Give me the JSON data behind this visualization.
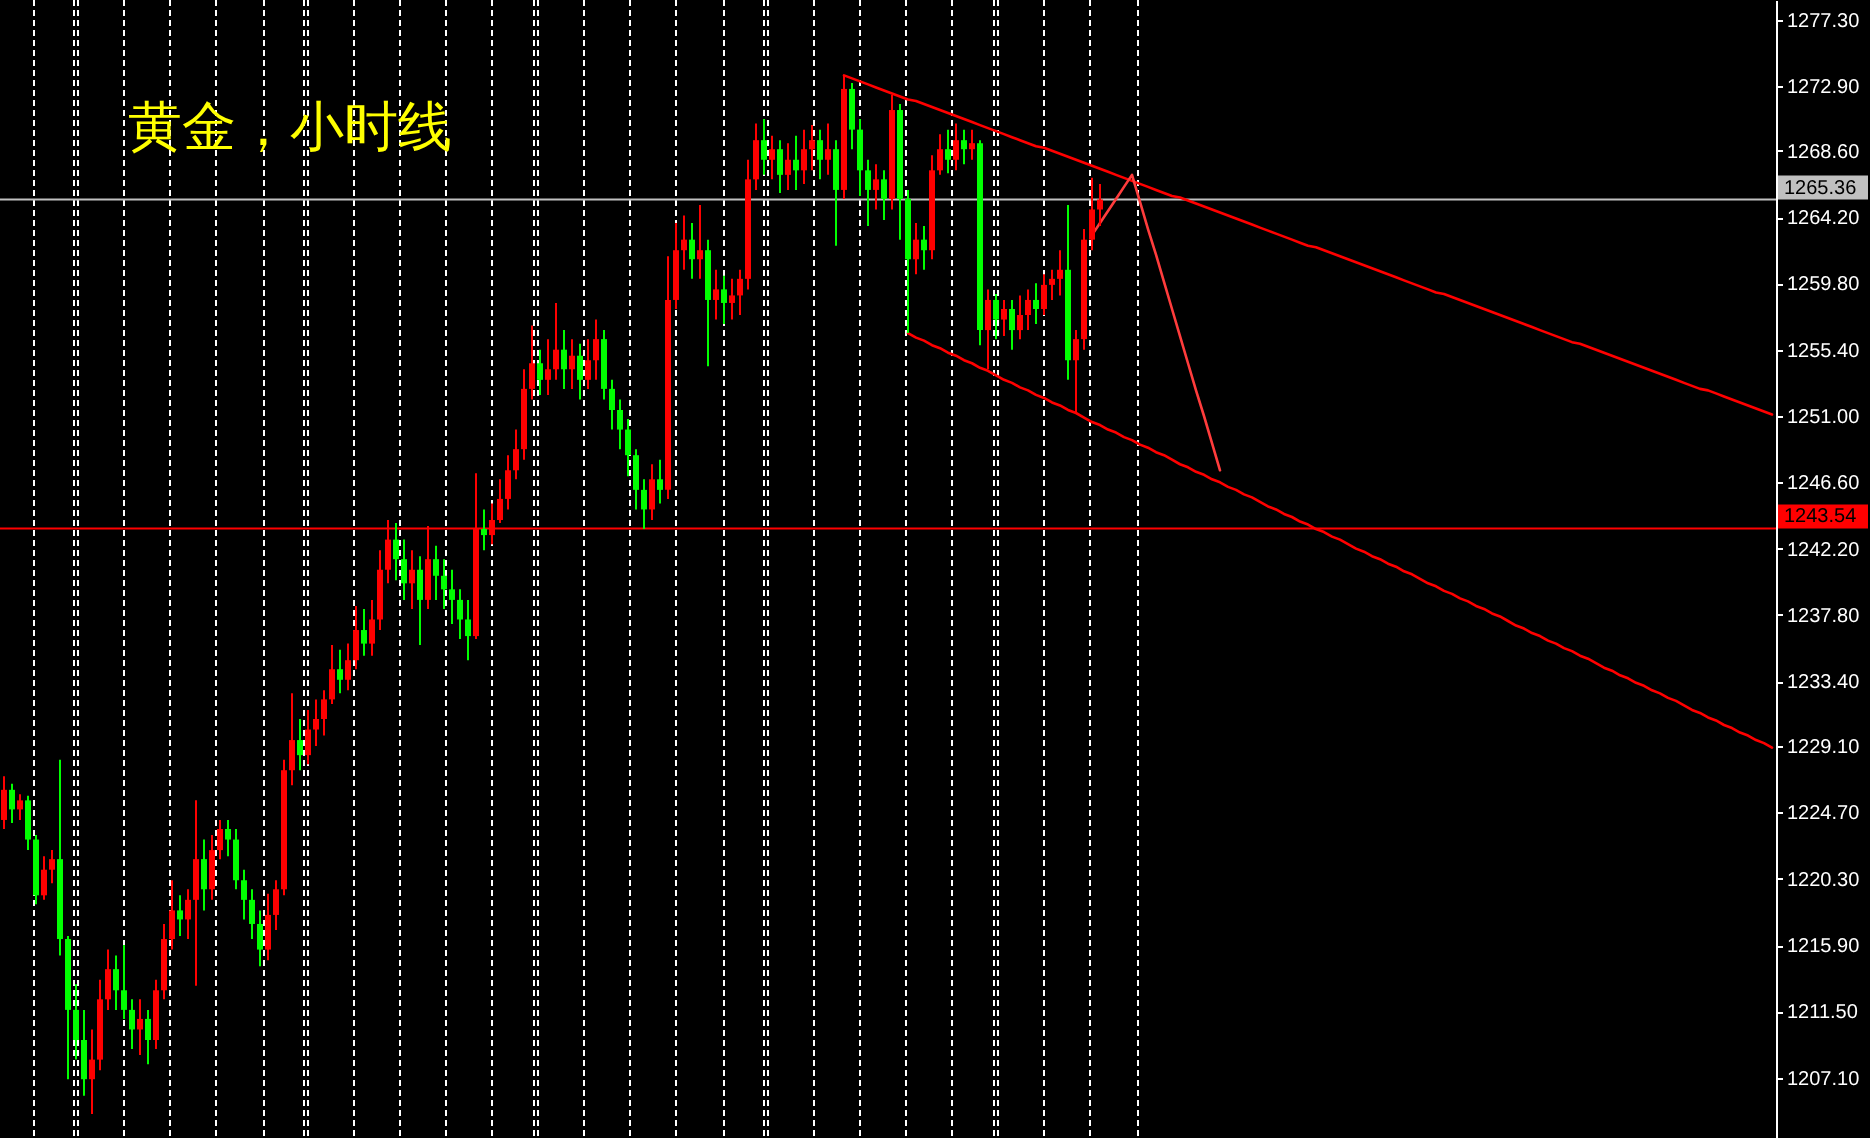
{
  "chart_data": {
    "type": "candlestick",
    "title": "黄金，小时线",
    "categories": [
      null,
      null,
      null,
      null,
      null,
      null,
      null,
      null,
      null,
      null,
      null,
      null,
      null,
      null,
      null,
      null,
      null,
      null,
      null,
      null,
      null,
      null,
      null,
      null,
      null,
      null,
      null,
      null,
      null,
      null,
      null,
      null,
      null,
      null,
      null,
      null,
      null,
      null,
      null,
      null,
      null,
      null,
      null,
      null,
      null,
      null,
      null,
      null,
      null,
      null,
      null,
      null,
      null,
      null,
      null,
      null,
      null,
      null,
      null,
      null,
      null,
      null,
      null,
      null,
      null,
      null,
      null,
      null,
      null,
      null,
      null,
      null,
      null,
      null,
      null,
      null,
      null,
      null,
      null,
      null,
      null,
      null,
      null,
      null,
      null,
      null,
      null,
      null,
      null,
      null,
      null,
      null,
      null,
      null,
      null,
      null,
      null,
      null,
      null,
      null,
      null,
      null,
      null,
      null,
      null,
      null,
      null,
      null,
      null,
      null,
      null,
      null,
      null,
      null,
      null,
      null,
      null,
      null,
      null,
      null,
      null,
      null,
      null,
      null,
      null,
      null,
      null,
      null,
      null,
      null,
      null,
      null,
      null,
      null,
      null,
      null,
      null,
      null,
      null,
      null,
      null,
      null,
      null,
      null,
      null,
      null,
      null,
      null,
      null,
      null,
      null,
      null,
      null,
      null,
      null,
      null,
      null,
      null,
      null,
      null,
      null,
      null,
      null,
      null,
      null,
      null,
      null,
      null,
      null,
      null,
      null,
      null,
      null,
      null,
      null,
      null,
      null,
      null,
      null,
      null,
      null,
      null,
      null,
      null,
      null,
      null,
      null,
      null,
      null,
      null,
      null,
      null,
      null,
      null,
      null,
      null,
      null,
      null,
      null,
      null,
      null,
      null,
      null,
      null,
      null,
      null,
      null,
      null,
      null,
      null,
      null,
      null,
      null,
      null,
      null,
      null,
      null,
      null,
      null,
      null,
      null,
      null
    ],
    "ohlc": [
      [
        1224.2,
        1227.1,
        1223.6,
        1226.2
      ],
      [
        1226.2,
        1226.6,
        1224.0,
        1224.9
      ],
      [
        1224.9,
        1225.9,
        1224.2,
        1225.5
      ],
      [
        1225.5,
        1225.8,
        1222.2,
        1222.9
      ],
      [
        1222.9,
        1223.2,
        1218.6,
        1219.2
      ],
      [
        1219.2,
        1221.8,
        1218.9,
        1220.9
      ],
      [
        1220.9,
        1222.2,
        1220.0,
        1221.6
      ],
      [
        1221.6,
        1228.2,
        1215.2,
        1216.3
      ],
      [
        1216.3,
        1216.5,
        1207.0,
        1211.6
      ],
      [
        1211.6,
        1213.3,
        1208.3,
        1209.6
      ],
      [
        1209.6,
        1211.6,
        1205.9,
        1207.0
      ],
      [
        1207.0,
        1210.3,
        1204.7,
        1208.3
      ],
      [
        1208.3,
        1213.6,
        1207.6,
        1212.3
      ],
      [
        1212.3,
        1215.6,
        1211.6,
        1214.3
      ],
      [
        1214.3,
        1215.2,
        1211.6,
        1212.9
      ],
      [
        1212.9,
        1215.9,
        1211.0,
        1211.6
      ],
      [
        1211.6,
        1212.3,
        1209.0,
        1210.3
      ],
      [
        1210.3,
        1212.3,
        1208.6,
        1211.0
      ],
      [
        1211.0,
        1211.6,
        1208.0,
        1209.6
      ],
      [
        1209.6,
        1213.6,
        1209.0,
        1212.9
      ],
      [
        1212.9,
        1217.3,
        1212.3,
        1216.3
      ],
      [
        1216.3,
        1220.2,
        1215.6,
        1218.2
      ],
      [
        1218.2,
        1219.2,
        1216.5,
        1217.6
      ],
      [
        1217.6,
        1219.6,
        1216.3,
        1218.9
      ],
      [
        1218.9,
        1225.5,
        1213.2,
        1221.6
      ],
      [
        1221.6,
        1222.9,
        1218.2,
        1219.6
      ],
      [
        1219.6,
        1223.2,
        1218.9,
        1222.2
      ],
      [
        1222.2,
        1224.2,
        1221.6,
        1223.6
      ],
      [
        1223.6,
        1224.2,
        1221.8,
        1222.9
      ],
      [
        1222.9,
        1223.6,
        1219.6,
        1220.2
      ],
      [
        1220.2,
        1220.9,
        1217.6,
        1218.9
      ],
      [
        1218.9,
        1219.6,
        1216.3,
        1217.3
      ],
      [
        1217.3,
        1218.2,
        1214.5,
        1215.6
      ],
      [
        1215.6,
        1219.3,
        1214.9,
        1217.9
      ],
      [
        1217.9,
        1220.2,
        1216.9,
        1219.6
      ],
      [
        1219.6,
        1228.2,
        1219.2,
        1227.5
      ],
      [
        1227.5,
        1232.6,
        1226.5,
        1229.5
      ],
      [
        1229.5,
        1230.9,
        1227.5,
        1228.5
      ],
      [
        1228.5,
        1231.5,
        1227.9,
        1230.2
      ],
      [
        1230.2,
        1232.2,
        1229.1,
        1230.9
      ],
      [
        1230.9,
        1232.8,
        1229.8,
        1232.2
      ],
      [
        1232.2,
        1235.8,
        1231.9,
        1234.2
      ],
      [
        1234.2,
        1235.5,
        1232.6,
        1233.5
      ],
      [
        1233.5,
        1235.9,
        1232.8,
        1234.8
      ],
      [
        1234.8,
        1238.4,
        1234.2,
        1236.8
      ],
      [
        1236.8,
        1238.2,
        1235.1,
        1235.9
      ],
      [
        1235.9,
        1238.8,
        1235.1,
        1237.5
      ],
      [
        1237.5,
        1242.1,
        1236.8,
        1240.8
      ],
      [
        1240.8,
        1244.1,
        1239.9,
        1242.8
      ],
      [
        1242.8,
        1243.9,
        1240.1,
        1241.5
      ],
      [
        1241.5,
        1242.8,
        1238.8,
        1239.9
      ],
      [
        1239.9,
        1242.1,
        1238.2,
        1240.8
      ],
      [
        1240.8,
        1241.7,
        1235.8,
        1238.8
      ],
      [
        1238.8,
        1243.7,
        1238.2,
        1241.5
      ],
      [
        1241.5,
        1242.4,
        1238.8,
        1240.4
      ],
      [
        1240.4,
        1241.5,
        1238.2,
        1239.5
      ],
      [
        1239.5,
        1240.8,
        1237.2,
        1238.8
      ],
      [
        1238.8,
        1239.5,
        1236.2,
        1237.5
      ],
      [
        1237.5,
        1238.8,
        1234.8,
        1236.4
      ],
      [
        1236.4,
        1247.2,
        1236.2,
        1243.5
      ],
      [
        1243.5,
        1244.8,
        1242.1,
        1243.1
      ],
      [
        1243.1,
        1245.2,
        1242.5,
        1244.1
      ],
      [
        1244.1,
        1246.8,
        1243.9,
        1245.5
      ],
      [
        1245.5,
        1248.4,
        1244.8,
        1247.4
      ],
      [
        1247.4,
        1250.1,
        1246.8,
        1248.8
      ],
      [
        1248.8,
        1254.1,
        1248.1,
        1252.8
      ],
      [
        1252.8,
        1257.0,
        1252.1,
        1254.5
      ],
      [
        1254.5,
        1255.4,
        1252.4,
        1253.4
      ],
      [
        1253.4,
        1256.1,
        1252.4,
        1254.1
      ],
      [
        1254.1,
        1258.5,
        1253.4,
        1255.4
      ],
      [
        1255.4,
        1256.7,
        1252.8,
        1254.1
      ],
      [
        1254.1,
        1256.1,
        1252.8,
        1255.0
      ],
      [
        1255.0,
        1255.8,
        1252.1,
        1253.4
      ],
      [
        1253.4,
        1256.1,
        1252.8,
        1254.7
      ],
      [
        1254.7,
        1257.4,
        1253.4,
        1256.1
      ],
      [
        1256.1,
        1256.7,
        1252.1,
        1252.8
      ],
      [
        1252.8,
        1253.4,
        1250.1,
        1251.4
      ],
      [
        1251.4,
        1252.1,
        1248.8,
        1250.1
      ],
      [
        1250.1,
        1250.8,
        1247.0,
        1248.4
      ],
      [
        1248.4,
        1248.8,
        1244.8,
        1246.1
      ],
      [
        1246.1,
        1246.8,
        1243.5,
        1244.8
      ],
      [
        1244.8,
        1247.8,
        1244.1,
        1246.8
      ],
      [
        1246.8,
        1248.1,
        1245.2,
        1246.1
      ],
      [
        1246.1,
        1261.6,
        1245.5,
        1258.7
      ],
      [
        1258.7,
        1263.8,
        1258.1,
        1262.0
      ],
      [
        1262.0,
        1264.3,
        1260.7,
        1262.7
      ],
      [
        1262.7,
        1263.8,
        1260.1,
        1261.4
      ],
      [
        1261.4,
        1265.0,
        1260.1,
        1262.0
      ],
      [
        1262.0,
        1262.7,
        1254.3,
        1258.7
      ],
      [
        1258.7,
        1260.7,
        1257.4,
        1259.4
      ],
      [
        1259.4,
        1260.3,
        1257.1,
        1258.5
      ],
      [
        1258.5,
        1260.1,
        1257.4,
        1259.0
      ],
      [
        1259.0,
        1260.7,
        1257.7,
        1260.1
      ],
      [
        1260.1,
        1268.0,
        1259.4,
        1266.7
      ],
      [
        1266.7,
        1270.4,
        1266.0,
        1269.3
      ],
      [
        1269.3,
        1270.7,
        1267.0,
        1268.0
      ],
      [
        1268.0,
        1269.6,
        1266.7,
        1268.7
      ],
      [
        1268.7,
        1269.3,
        1265.8,
        1267.0
      ],
      [
        1267.0,
        1269.1,
        1266.0,
        1268.0
      ],
      [
        1268.0,
        1269.6,
        1266.0,
        1267.3
      ],
      [
        1267.3,
        1270.0,
        1266.4,
        1268.7
      ],
      [
        1268.7,
        1270.3,
        1267.3,
        1269.3
      ],
      [
        1269.3,
        1270.0,
        1266.7,
        1268.0
      ],
      [
        1268.0,
        1270.4,
        1267.0,
        1268.7
      ],
      [
        1268.7,
        1269.3,
        1262.3,
        1266.0
      ],
      [
        1266.0,
        1273.6,
        1265.4,
        1272.7
      ],
      [
        1272.7,
        1273.1,
        1268.7,
        1270.0
      ],
      [
        1270.0,
        1270.7,
        1265.6,
        1267.3
      ],
      [
        1267.3,
        1268.0,
        1263.6,
        1266.0
      ],
      [
        1266.0,
        1267.7,
        1264.7,
        1266.7
      ],
      [
        1266.7,
        1267.3,
        1264.0,
        1265.4
      ],
      [
        1265.4,
        1272.3,
        1264.7,
        1271.3
      ],
      [
        1271.3,
        1271.7,
        1262.7,
        1265.4
      ],
      [
        1265.4,
        1266.0,
        1256.5,
        1261.4
      ],
      [
        1261.4,
        1263.8,
        1260.4,
        1262.7
      ],
      [
        1262.7,
        1263.6,
        1260.7,
        1262.0
      ],
      [
        1262.0,
        1268.3,
        1261.4,
        1267.3
      ],
      [
        1267.3,
        1269.7,
        1267.0,
        1268.7
      ],
      [
        1268.7,
        1270.0,
        1267.1,
        1268.0
      ],
      [
        1268.0,
        1270.4,
        1267.3,
        1269.3
      ],
      [
        1269.3,
        1270.0,
        1267.7,
        1268.7
      ],
      [
        1268.7,
        1270.0,
        1268.0,
        1269.1
      ],
      [
        1269.1,
        1269.3,
        1255.7,
        1256.7
      ],
      [
        1256.7,
        1259.4,
        1254.1,
        1258.7
      ],
      [
        1258.7,
        1259.1,
        1256.1,
        1257.4
      ],
      [
        1257.4,
        1258.7,
        1256.3,
        1258.1
      ],
      [
        1258.1,
        1258.7,
        1255.4,
        1256.7
      ],
      [
        1256.7,
        1259.0,
        1256.1,
        1257.7
      ],
      [
        1257.7,
        1259.4,
        1256.7,
        1258.7
      ],
      [
        1258.7,
        1259.8,
        1257.1,
        1258.1
      ],
      [
        1258.1,
        1260.4,
        1257.7,
        1259.7
      ],
      [
        1259.7,
        1260.7,
        1258.7,
        1260.1
      ],
      [
        1260.1,
        1262.0,
        1259.0,
        1260.7
      ],
      [
        1260.7,
        1265.0,
        1253.4,
        1254.7
      ],
      [
        1254.7,
        1256.7,
        1251.2,
        1256.1
      ],
      [
        1256.1,
        1263.4,
        1255.4,
        1262.7
      ],
      [
        1262.7,
        1266.8,
        1262.0,
        1264.7
      ],
      [
        1264.7,
        1266.4,
        1263.6,
        1265.36
      ],
      null,
      null,
      null,
      null,
      null,
      null,
      null,
      null,
      null,
      null,
      null,
      null,
      null,
      null,
      null,
      null,
      null,
      null,
      null,
      null,
      null,
      null,
      null,
      null,
      null,
      null,
      null,
      null,
      null,
      null,
      null,
      null,
      null,
      null,
      null,
      null,
      null,
      null,
      null,
      null,
      null,
      null,
      null,
      null,
      null,
      null,
      null,
      null,
      null,
      null,
      null,
      null,
      null,
      null,
      null,
      null,
      null,
      null,
      null,
      null,
      null,
      null,
      null,
      null,
      null,
      null,
      null,
      null,
      null,
      null,
      null,
      null,
      null,
      null,
      null,
      null,
      null,
      null,
      null,
      null,
      null,
      null,
      null,
      null
    ],
    "colors": [
      "#ff0000",
      "#00ff00",
      "#ff0000",
      "#00ff00",
      "#00ff00",
      "#ff0000",
      "#ff0000",
      "#00ff00",
      "#00ff00",
      "#00ff00",
      "#00ff00",
      "#ff0000",
      "#ff0000",
      "#ff0000",
      "#00ff00",
      "#00ff00",
      "#00ff00",
      "#ff0000",
      "#00ff00",
      "#ff0000",
      "#ff0000",
      "#ff0000",
      "#00ff00",
      "#ff0000",
      "#ff0000",
      "#00ff00",
      "#ff0000",
      "#ff0000",
      "#00ff00",
      "#00ff00",
      "#00ff00",
      "#00ff00",
      "#00ff00",
      "#ff0000",
      "#ff0000",
      "#ff0000",
      "#ff0000",
      "#00ff00",
      "#ff0000",
      "#ff0000",
      "#ff0000",
      "#ff0000",
      "#00ff00",
      "#ff0000",
      "#ff0000",
      "#00ff00",
      "#ff0000",
      "#ff0000",
      "#ff0000",
      "#00ff00",
      "#00ff00",
      "#ff0000",
      "#00ff00",
      "#ff0000",
      "#00ff00",
      "#00ff00",
      "#00ff00",
      "#00ff00",
      "#00ff00",
      "#ff0000",
      "#00ff00",
      "#ff0000",
      "#ff0000",
      "#ff0000",
      "#ff0000",
      "#ff0000",
      "#ff0000",
      "#00ff00",
      "#ff0000",
      "#ff0000",
      "#00ff00",
      "#ff0000",
      "#00ff00",
      "#ff0000",
      "#ff0000",
      "#00ff00",
      "#00ff00",
      "#00ff00",
      "#00ff00",
      "#00ff00",
      "#00ff00",
      "#ff0000",
      "#00ff00",
      "#ff0000",
      "#ff0000",
      "#ff0000",
      "#00ff00",
      "#ff0000",
      "#00ff00",
      "#ff0000",
      "#00ff00",
      "#ff0000",
      "#ff0000",
      "#ff0000",
      "#ff0000",
      "#00ff00",
      "#ff0000",
      "#00ff00",
      "#ff0000",
      "#00ff00",
      "#ff0000",
      "#ff0000",
      "#00ff00",
      "#ff0000",
      "#00ff00",
      "#ff0000",
      "#00ff00",
      "#00ff00",
      "#00ff00",
      "#ff0000",
      "#00ff00",
      "#ff0000",
      "#00ff00",
      "#00ff00",
      "#ff0000",
      "#00ff00",
      "#ff0000",
      "#ff0000",
      "#00ff00",
      "#ff0000",
      "#00ff00",
      "#ff0000",
      "#00ff00",
      "#ff0000",
      "#00ff00",
      "#ff0000",
      "#00ff00",
      "#ff0000",
      "#ff0000",
      "#00ff00",
      "#ff0000",
      "#ff0000",
      "#ff0000",
      "#00ff00",
      "#ff0000",
      "#ff0000",
      "#ff0000",
      "#ff0000",
      null,
      null,
      null,
      null,
      null,
      null,
      null,
      null,
      null,
      null,
      null,
      null,
      null,
      null,
      null,
      null,
      null,
      null,
      null,
      null,
      null,
      null,
      null,
      null,
      null,
      null,
      null,
      null,
      null,
      null,
      null,
      null,
      null,
      null,
      null,
      null,
      null,
      null,
      null,
      null,
      null,
      null,
      null,
      null,
      null,
      null,
      null,
      null,
      null,
      null,
      null,
      null,
      null,
      null,
      null,
      null,
      null,
      null,
      null,
      null,
      null,
      null,
      null,
      null,
      null,
      null,
      null,
      null,
      null,
      null,
      null,
      null,
      null,
      null,
      null,
      null,
      null,
      null,
      null,
      null,
      null,
      null,
      null,
      null
    ],
    "series": [
      {
        "type": "line",
        "color": "#ff0000",
        "values": [
          null,
          null,
          null,
          null,
          null,
          null,
          null,
          null,
          null,
          null,
          null,
          null,
          null,
          null,
          null,
          null,
          null,
          null,
          null,
          null,
          null,
          null,
          null,
          null,
          null,
          null,
          null,
          null,
          null,
          null,
          null,
          null,
          null,
          null,
          null,
          null,
          null,
          null,
          null,
          null,
          null,
          null,
          null,
          null,
          null,
          null,
          null,
          null,
          null,
          null,
          null,
          null,
          null,
          null,
          null,
          null,
          null,
          null,
          null,
          null,
          null,
          null,
          null,
          null,
          null,
          null,
          null,
          null,
          null,
          null,
          null,
          null,
          null,
          null,
          null,
          null,
          null,
          null,
          null,
          null,
          null,
          null,
          null,
          null,
          null,
          null,
          null,
          null,
          null,
          null,
          null,
          null,
          null,
          null,
          null,
          null,
          null,
          null,
          null,
          null,
          null,
          null,
          null,
          null,
          null,
          1273.6,
          1273.4,
          1273.2,
          1273.0,
          1272.8,
          1272.6,
          1272.4,
          1272.2,
          1272.0,
          1271.9,
          1271.7,
          1271.5,
          1271.3,
          1271.1,
          1270.9,
          1270.7,
          1270.5,
          1270.3,
          1270.1,
          1269.9,
          1269.7,
          1269.5,
          1269.3,
          1269.1,
          1268.9,
          1268.8,
          1268.6,
          1268.4,
          1268.2,
          1268.0,
          1267.8,
          1267.6,
          1267.4,
          1267.2,
          1267.0,
          1266.8,
          1266.6,
          1266.4,
          1266.2,
          1266.0,
          1265.8,
          1265.6,
          1265.5,
          1265.3,
          1265.1,
          1264.9,
          1264.7,
          1264.5,
          1264.3,
          1264.1,
          1263.9,
          1263.7,
          1263.5,
          1263.3,
          1263.1,
          1262.9,
          1262.7,
          1262.5,
          1262.3,
          1262.2,
          1262.0,
          1261.8,
          1261.6,
          1261.4,
          1261.2,
          1261.0,
          1260.8,
          1260.6,
          1260.4,
          1260.2,
          1260.0,
          1259.8,
          1259.6,
          1259.4,
          1259.2,
          1259.1,
          1258.9,
          1258.7,
          1258.5,
          1258.3,
          1258.1,
          1257.9,
          1257.7,
          1257.5,
          1257.3,
          1257.1,
          1256.9,
          1256.7,
          1256.5,
          1256.3,
          1256.1,
          1255.9,
          1255.8,
          1255.6,
          1255.4,
          1255.2,
          1255.0,
          1254.8,
          1254.6,
          1254.4,
          1254.2,
          1254.0,
          1253.8,
          1253.6,
          1253.4,
          1253.2,
          1253.0,
          1252.8,
          1252.7,
          1252.5,
          1252.3,
          1252.1,
          1251.9,
          1251.7,
          1251.5,
          1251.3,
          1251.1
        ]
      },
      {
        "type": "line",
        "color": "#ff0000",
        "values": [
          null,
          null,
          null,
          null,
          null,
          null,
          null,
          null,
          null,
          null,
          null,
          null,
          null,
          null,
          null,
          null,
          null,
          null,
          null,
          null,
          null,
          null,
          null,
          null,
          null,
          null,
          null,
          null,
          null,
          null,
          null,
          null,
          null,
          null,
          null,
          null,
          null,
          null,
          null,
          null,
          null,
          null,
          null,
          null,
          null,
          null,
          null,
          null,
          null,
          null,
          null,
          null,
          null,
          null,
          null,
          null,
          null,
          null,
          null,
          null,
          null,
          null,
          null,
          null,
          null,
          null,
          null,
          null,
          null,
          null,
          null,
          null,
          null,
          null,
          null,
          null,
          null,
          null,
          null,
          null,
          null,
          null,
          null,
          null,
          null,
          null,
          null,
          null,
          null,
          null,
          null,
          null,
          null,
          null,
          null,
          null,
          null,
          null,
          null,
          null,
          null,
          null,
          null,
          null,
          null,
          null,
          null,
          null,
          null,
          null,
          null,
          null,
          null,
          1256.5,
          1256.2,
          1256.0,
          1255.7,
          1255.5,
          1255.2,
          1255.0,
          1254.7,
          1254.5,
          1254.2,
          1254.0,
          1253.7,
          1253.4,
          1253.2,
          1252.9,
          1252.7,
          1252.4,
          1252.2,
          1251.9,
          1251.7,
          1251.4,
          1251.2,
          1250.9,
          1250.6,
          1250.4,
          1250.1,
          1249.9,
          1249.6,
          1249.4,
          1249.1,
          1248.9,
          1248.6,
          1248.4,
          1248.1,
          1247.8,
          1247.6,
          1247.3,
          1247.1,
          1246.8,
          1246.6,
          1246.3,
          1246.1,
          1245.8,
          1245.6,
          1245.3,
          1245.0,
          1244.8,
          1244.5,
          1244.3,
          1244.0,
          1243.8,
          1243.5,
          1243.3,
          1243.0,
          1242.8,
          1242.5,
          1242.2,
          1242.0,
          1241.7,
          1241.5,
          1241.2,
          1241.0,
          1240.7,
          1240.5,
          1240.2,
          1239.9,
          1239.7,
          1239.4,
          1239.2,
          1238.9,
          1238.7,
          1238.4,
          1238.2,
          1237.9,
          1237.7,
          1237.4,
          1237.1,
          1236.9,
          1236.6,
          1236.4,
          1236.1,
          1235.9,
          1235.6,
          1235.4,
          1235.1,
          1234.9,
          1234.6,
          1234.3,
          1234.1,
          1233.8,
          1233.6,
          1233.3,
          1233.1,
          1232.8,
          1232.6,
          1232.3,
          1232.1,
          1231.8,
          1231.5,
          1231.3,
          1231.0,
          1230.8,
          1230.5,
          1230.3,
          1230.0,
          1229.8,
          1229.5,
          1229.3,
          1229.0
        ]
      },
      {
        "type": "line",
        "color": "#ff3c3c",
        "values": [
          null,
          null,
          null,
          null,
          null,
          null,
          null,
          null,
          null,
          null,
          null,
          null,
          null,
          null,
          null,
          null,
          null,
          null,
          null,
          null,
          null,
          null,
          null,
          null,
          null,
          null,
          null,
          null,
          null,
          null,
          null,
          null,
          null,
          null,
          null,
          null,
          null,
          null,
          null,
          null,
          null,
          null,
          null,
          null,
          null,
          null,
          null,
          null,
          null,
          null,
          null,
          null,
          null,
          null,
          null,
          null,
          null,
          null,
          null,
          null,
          null,
          null,
          null,
          null,
          null,
          null,
          null,
          null,
          null,
          null,
          null,
          null,
          null,
          null,
          null,
          null,
          null,
          null,
          null,
          null,
          null,
          null,
          null,
          null,
          null,
          null,
          null,
          null,
          null,
          null,
          null,
          null,
          null,
          null,
          null,
          null,
          null,
          null,
          null,
          null,
          null,
          null,
          null,
          null,
          null,
          null,
          null,
          null,
          null,
          null,
          null,
          null,
          null,
          null,
          null,
          null,
          null,
          null,
          null,
          null,
          null,
          null,
          null,
          null,
          null,
          null,
          null,
          null,
          null,
          null,
          null,
          null,
          null,
          null,
          null,
          null,
          1263.0,
          1263.8,
          1264.6,
          1265.4,
          1266.2,
          1267.0,
          1265.2,
          1263.4,
          1261.7,
          1259.9,
          1258.1,
          1256.3,
          1254.5,
          1252.7,
          1251.0,
          1249.2,
          1247.4,
          null,
          null,
          null,
          null,
          null,
          null,
          null,
          null,
          null,
          null,
          null,
          null,
          null,
          null,
          null,
          null,
          null,
          null,
          null,
          null,
          null,
          null,
          null,
          null,
          null,
          null,
          null,
          null,
          null,
          null,
          null,
          null,
          null,
          null,
          null,
          null,
          null,
          null,
          null,
          null,
          null,
          null,
          null,
          null,
          null,
          null,
          null,
          null,
          null,
          null,
          null,
          null,
          null,
          null,
          null,
          null,
          null,
          null,
          null,
          null,
          null,
          null,
          null,
          null,
          null,
          null,
          null,
          null,
          null
        ]
      }
    ],
    "ylim": [
      1203.1,
      1278.6
    ],
    "yticks": [
      {
        "value": 1207.1,
        "label": "1207.10"
      },
      {
        "value": 1211.5,
        "label": "1211.50"
      },
      {
        "value": 1215.9,
        "label": "1215.90"
      },
      {
        "value": 1220.3,
        "label": "1220.30"
      },
      {
        "value": 1224.7,
        "label": "1224.70"
      },
      {
        "value": 1229.1,
        "label": "1229.10"
      },
      {
        "value": 1233.4,
        "label": "1233.40"
      },
      {
        "value": 1237.8,
        "label": "1237.80"
      },
      {
        "value": 1242.2,
        "label": "1242.20"
      },
      {
        "value": 1246.6,
        "label": "1246.60"
      },
      {
        "value": 1251.0,
        "label": "1251.00"
      },
      {
        "value": 1255.4,
        "label": "1255.40"
      },
      {
        "value": 1259.8,
        "label": "1259.80"
      },
      {
        "value": 1264.2,
        "label": "1264.20"
      },
      {
        "value": 1268.6,
        "label": "1268.60"
      },
      {
        "value": 1272.9,
        "label": "1272.90"
      },
      {
        "value": 1277.3,
        "label": "1277.30"
      }
    ],
    "tick_labels": "y",
    "ref_lines": [
      {
        "axis": "y",
        "value": 1265.36,
        "label": "1265.36",
        "color": "#c0c0c0"
      },
      {
        "axis": "y",
        "value": 1243.54,
        "label": "1243.54",
        "color": "#ff0000"
      }
    ]
  }
}
